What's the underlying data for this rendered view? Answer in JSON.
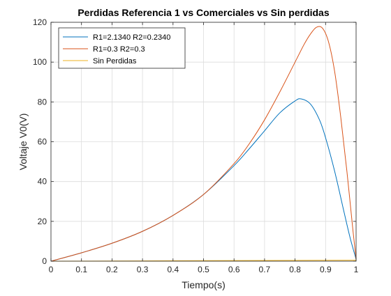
{
  "chart_data": {
    "type": "line",
    "title": "Perdidas Referencia 1 vs Comerciales vs Sin perdidas",
    "xlabel": "Tiempo(s)",
    "ylabel": "Voltaje V0(V)",
    "xlim": [
      0,
      1
    ],
    "ylim": [
      0,
      120
    ],
    "xticks": [
      "0",
      "0.1",
      "0.2",
      "0.3",
      "0.4",
      "0.5",
      "0.6",
      "0.7",
      "0.8",
      "0.9",
      "1"
    ],
    "yticks": [
      "0",
      "20",
      "40",
      "60",
      "80",
      "100",
      "120"
    ],
    "grid": true,
    "legend_position": "top-left",
    "series": [
      {
        "name": "R1=2.1340 R2=0.2340",
        "color": "#0072BD",
        "x": [
          0,
          0.1,
          0.2,
          0.3,
          0.4,
          0.5,
          0.6,
          0.65,
          0.7,
          0.75,
          0.8,
          0.82,
          0.85,
          0.88,
          0.9,
          0.93,
          0.96,
          0.98,
          1.0
        ],
        "y": [
          0,
          4.2,
          9,
          15,
          23,
          33.5,
          48,
          56.5,
          65.5,
          74.5,
          80.5,
          81.5,
          79,
          71,
          62,
          45,
          25,
          12,
          1
        ]
      },
      {
        "name": "R1=0.3 R2=0.3",
        "color": "#D95319",
        "x": [
          0,
          0.1,
          0.2,
          0.3,
          0.4,
          0.5,
          0.6,
          0.65,
          0.7,
          0.75,
          0.8,
          0.83,
          0.85,
          0.87,
          0.89,
          0.91,
          0.93,
          0.95,
          0.97,
          0.99,
          1.0
        ],
        "y": [
          0,
          4.2,
          9,
          15,
          23,
          33.5,
          49,
          59,
          71,
          85,
          100,
          109,
          114,
          117.5,
          117,
          110,
          95,
          72,
          45,
          15,
          1
        ]
      },
      {
        "name": "Sin Perdidas",
        "color": "#EDB120",
        "x": [
          0,
          0.2,
          0.4,
          0.6,
          0.8,
          1.0
        ],
        "y": [
          0,
          0.1,
          0.2,
          0.3,
          0.4,
          0.5
        ]
      }
    ]
  }
}
